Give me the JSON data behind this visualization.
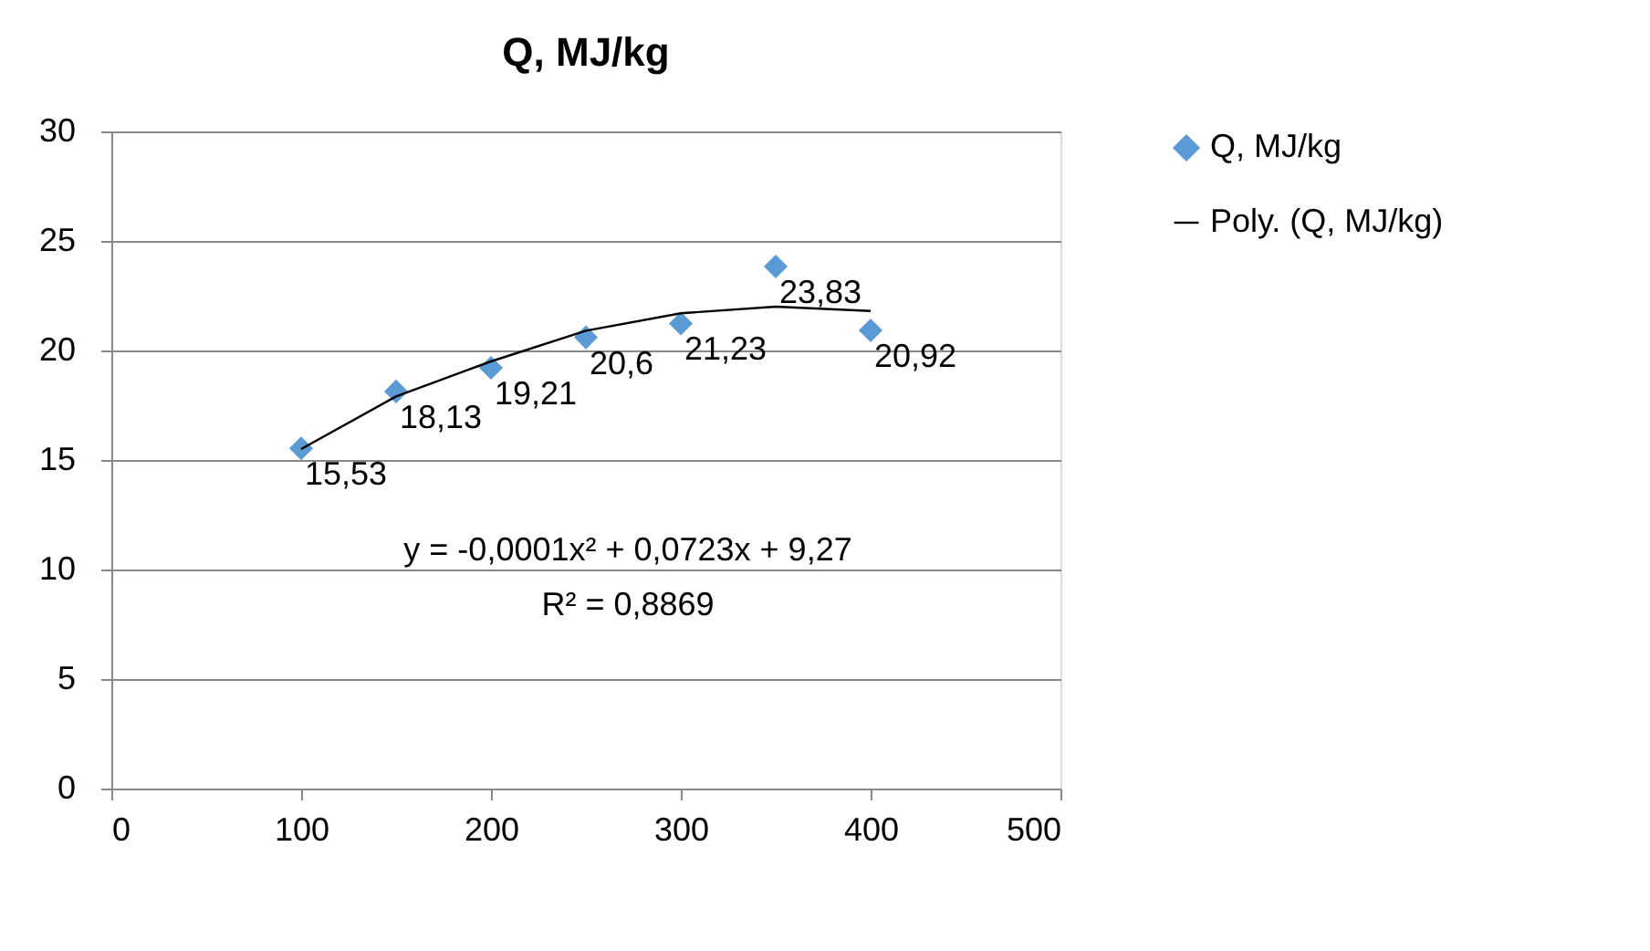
{
  "chart_data": {
    "type": "scatter",
    "title": "Q, MJ/kg",
    "xlim": [
      0,
      500
    ],
    "xticks": [
      0,
      100,
      200,
      300,
      400,
      500
    ],
    "ylim": [
      0,
      30
    ],
    "yticks": [
      0,
      5,
      10,
      15,
      20,
      25,
      30
    ],
    "grid": "y",
    "legend": "right",
    "marker": "diamond",
    "series": [
      {
        "name": "Q, MJ/kg",
        "color": "#5b9bd5",
        "x": [
          100,
          150,
          200,
          250,
          300,
          350,
          400
        ],
        "values": [
          15.53,
          18.13,
          19.21,
          20.6,
          21.23,
          23.83,
          20.92
        ],
        "value_labels": [
          "15,53",
          "18,13",
          "19,21",
          "20,6",
          "21,23",
          "23,83",
          "20,92"
        ]
      },
      {
        "name": "Poly. (Q, MJ/kg)",
        "type": "line",
        "color": "#000000",
        "marker": "none",
        "line_style": "solid",
        "x": [
          100,
          150,
          200,
          250,
          300,
          350,
          400
        ],
        "values": [
          15.5,
          17.9,
          19.5,
          20.9,
          21.7,
          22.0,
          21.8
        ]
      }
    ],
    "annotations": [
      "y = -0,0001x² + 0,0723x + 9,27",
      "R² = 0,8869"
    ]
  }
}
